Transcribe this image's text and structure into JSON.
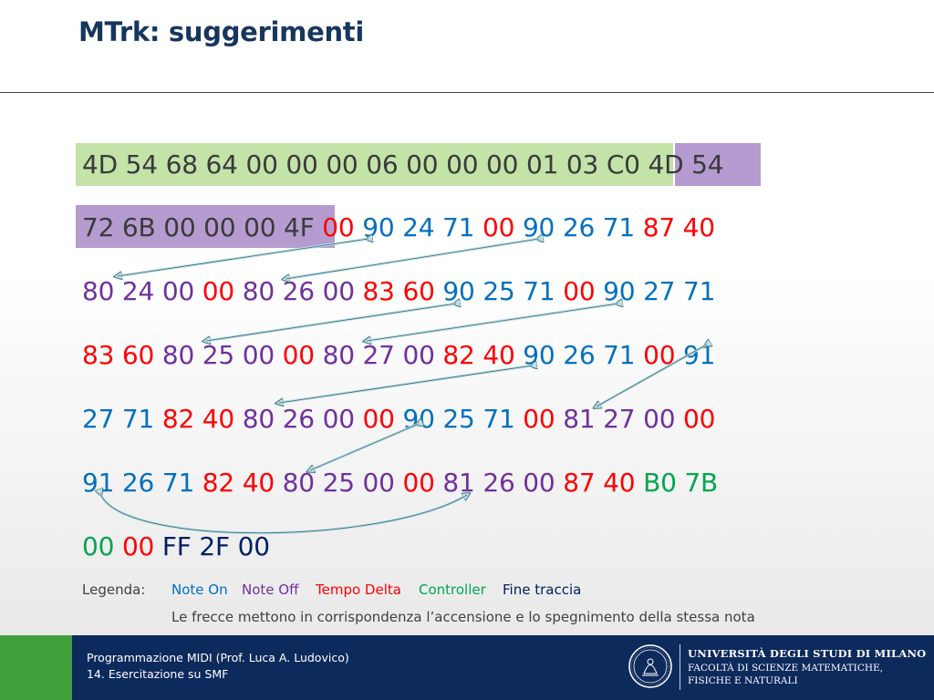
{
  "title": "MTrk: suggerimenti",
  "colors": {
    "note_on": "#0070c0",
    "note_off": "#7030a0",
    "tempo_delta": "#ff0000",
    "controller": "#00a550",
    "fine_traccia": "#002060",
    "header_highlight": "#c3e3a9",
    "track_header_highlight": "#b59bd0",
    "title": "#17365d",
    "footer_bg": "#0d2a5c",
    "footer_accent": "#3f9f3a"
  },
  "hex": {
    "line1": {
      "a": "4D 54 68 64 00 00 00 06 00 00 00 01 03 C0",
      "b": "4D 54"
    },
    "line2": {
      "a": "72 6B 00 00 00 4F",
      "b": "00",
      "c": "90 24 71",
      "d": "00",
      "e": "90 26 71",
      "f": "87 40"
    },
    "line3": {
      "a": "80 24 00",
      "b": "00",
      "c": "80 26 00",
      "d": "83 60",
      "e": "90 25 71",
      "f": "00",
      "g": "90 27 71"
    },
    "line4": {
      "a": "83 60",
      "b": "80 25 00",
      "c": "00",
      "d": "80 27 00",
      "e": "82 40",
      "f": "90 26 71",
      "g": "00",
      "h": "91"
    },
    "line5": {
      "a": "27 71",
      "b": "82 40",
      "c": "80 26 00",
      "d": "00",
      "e": "90 25 71",
      "f": "00",
      "g": "81 27 00",
      "h": "00"
    },
    "line6": {
      "a": "91 26 71",
      "b": "82 40",
      "c": "80 25 00",
      "d": "00",
      "e": "81 26 00",
      "f": "87 40",
      "g": "B0 7B"
    },
    "line7": {
      "a": "00",
      "b": "00",
      "c": "FF 2F 00"
    }
  },
  "legend": {
    "label": "Legenda:",
    "note_on": "Note On",
    "note_off": "Note Off",
    "tempo_delta": "Tempo Delta",
    "controller": "Controller",
    "fine_traccia": "Fine traccia",
    "note": "Le frecce mettono in corrispondenza l’accensione e lo spegnimento della stessa nota"
  },
  "footer": {
    "line1": "Programmazione MIDI (Prof. Luca A. Ludovico)",
    "line2": "14. Esercitazione su SMF",
    "university": "UNIVERSITÀ DEGLI STUDI DI MILANO",
    "faculty_line1": "FACOLTÀ DI SCIENZE MATEMATICHE,",
    "faculty_line2": "FISICHE E NATURALI",
    "seal_icon": "university-seal-icon"
  }
}
